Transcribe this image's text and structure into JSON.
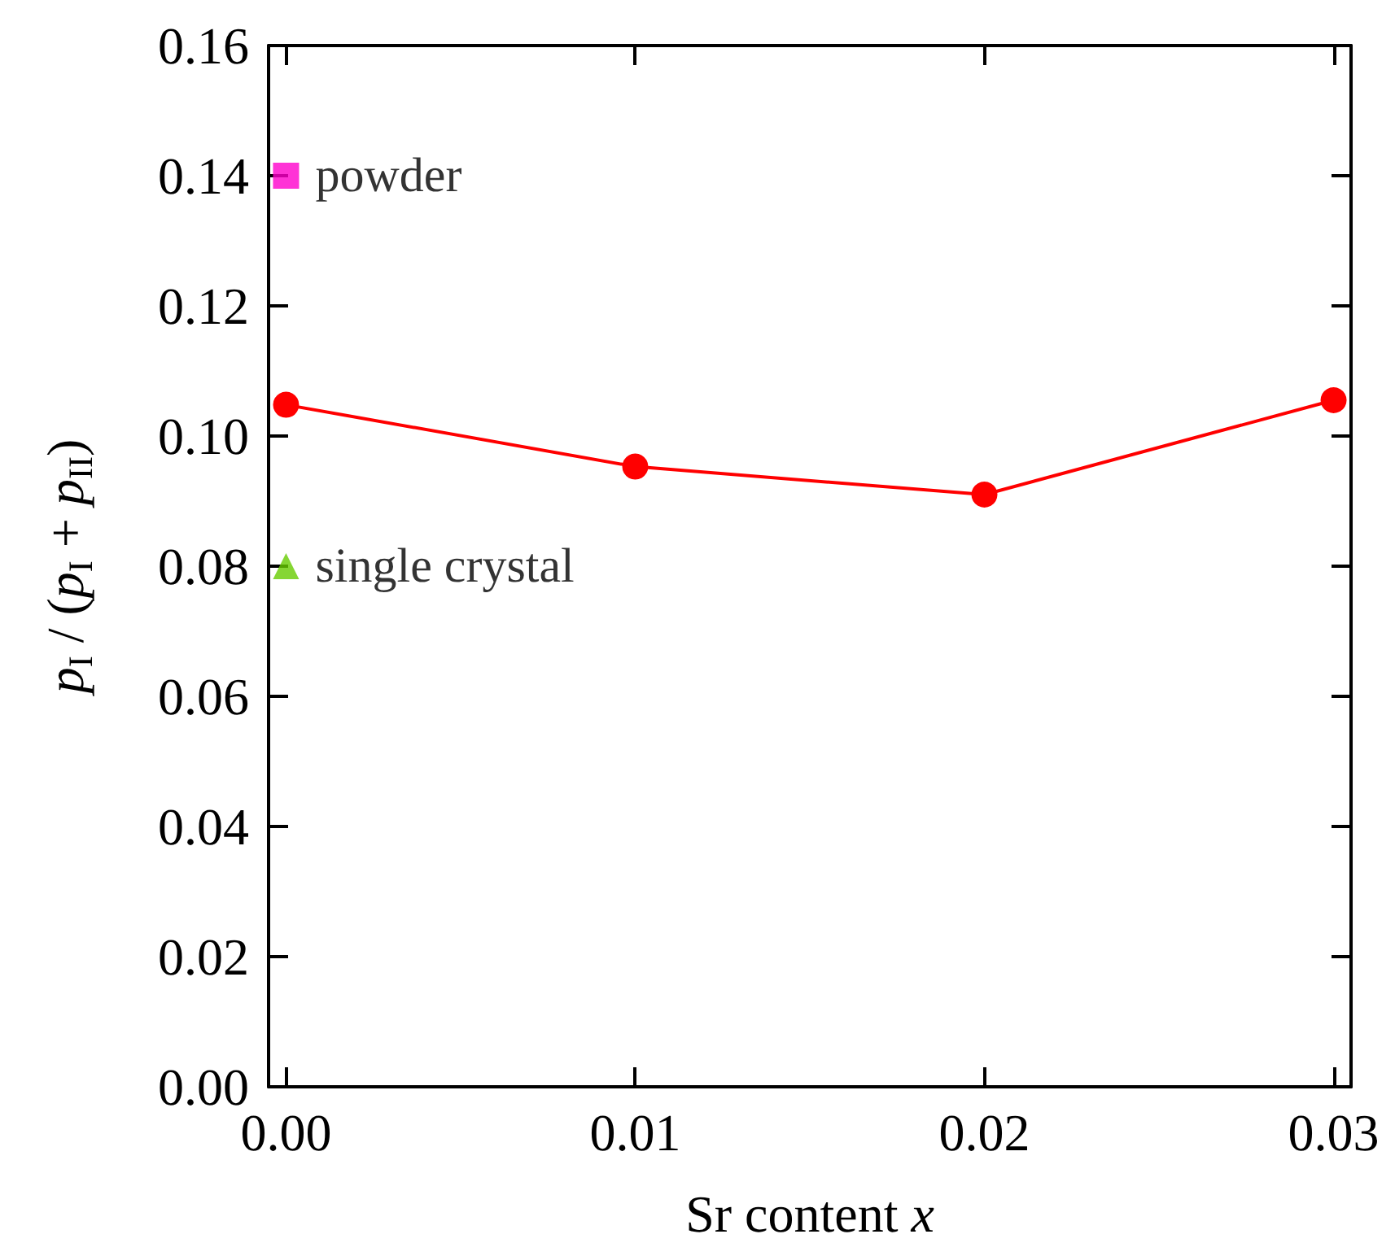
{
  "chart_data": {
    "type": "line",
    "xlabel": "Sr content x",
    "ylabel": "p$_{I}$ / (p$_{I}$ + p$_{II}$)",
    "xlim": [
      -0.0005,
      0.0305
    ],
    "xticks": [
      {
        "value": 0,
        "label": "0.00"
      },
      0.01,
      0.02,
      0.03
    ],
    "ylim": [
      0,
      0.16
    ],
    "yticks": [
      {
        "value": 0,
        "label": "0.00"
      },
      0.02,
      0.04,
      0.06,
      0.08,
      {
        "value": 0.1,
        "label": "0.10"
      },
      0.12,
      0.14,
      0.16
    ],
    "grid": false,
    "legend": false,
    "marker": "circle",
    "line_style": "solid",
    "series": [
      {
        "color": "#ff0000",
        "x": [
          0,
          0.01,
          0.02,
          0.03
        ],
        "values": [
          0.1048,
          0.0953,
          0.091,
          0.1055
        ]
      },
      {
        "type": "scatter",
        "name": "powder",
        "marker": "square",
        "color": "#ff00cc",
        "x": [
          0
        ],
        "values": [
          0.14
        ]
      },
      {
        "type": "scatter",
        "name": "single crystal",
        "marker": "triangle",
        "color": "#66cc00",
        "x": [
          0
        ],
        "values": [
          0.08
        ]
      }
    ]
  }
}
